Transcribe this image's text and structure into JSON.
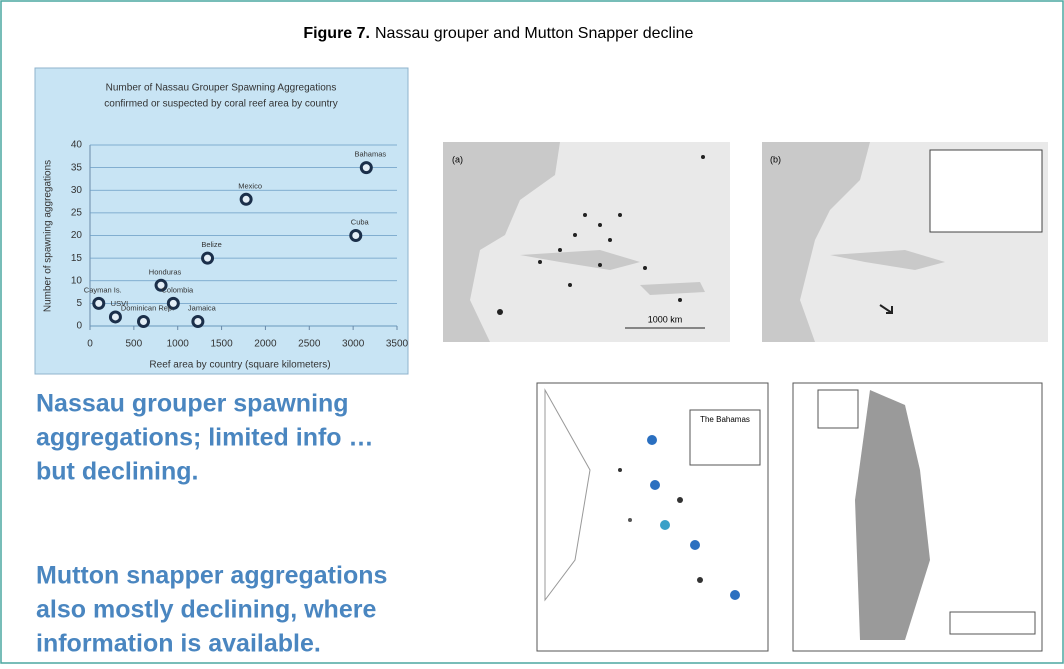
{
  "figure_label": "Figure 7.",
  "figure_title": "Nassau grouper and Mutton Snapper decline",
  "chart_data": {
    "type": "scatter",
    "title": [
      "Number of Nassau Grouper Spawning Aggregations",
      "confirmed or suspected by coral reef area by country"
    ],
    "x_label": "Reef area by country (square kilometers)",
    "y_label": "Number of spawning aggregations",
    "labels": [
      "Bahamas",
      "Mexico",
      "Cuba",
      "Belize",
      "Honduras",
      "Cayman Is.",
      "USVI",
      "Colombia",
      "Dominican Rep.",
      "Jamaica"
    ],
    "x": [
      3150,
      1780,
      3030,
      1340,
      810,
      100,
      290,
      950,
      610,
      1230
    ],
    "values": [
      35,
      28,
      20,
      15,
      9,
      5,
      2,
      5,
      1,
      1
    ],
    "color": "#1b2f4a",
    "xlim": [
      0,
      3500
    ],
    "xticks": [
      0,
      500,
      1000,
      1500,
      2000,
      2500,
      3000,
      3500
    ],
    "ylim": [
      0,
      40
    ],
    "yticks": [
      0,
      5,
      10,
      15,
      20,
      25,
      30,
      35,
      40
    ],
    "grid": true
  },
  "text_blocks": [
    [
      "Nassau grouper spawning",
      "aggregations; limited info …",
      "but declining."
    ],
    [
      "Mutton snapper aggregations",
      "also mostly declining, where",
      "information is available."
    ]
  ],
  "maps": [
    {
      "label": "(a)",
      "scale": "1000 km"
    },
    {
      "label": "(b)"
    },
    {
      "title": "The Bahamas"
    }
  ]
}
